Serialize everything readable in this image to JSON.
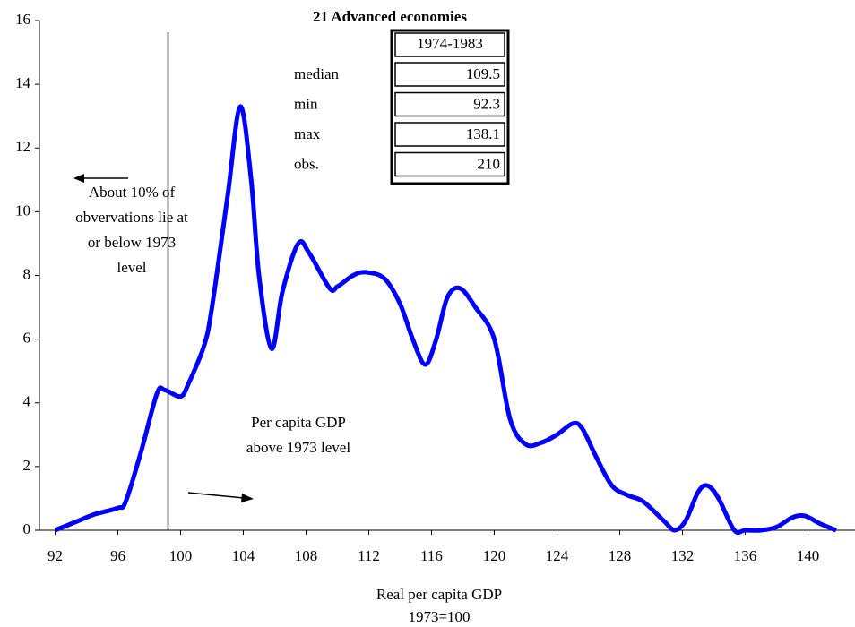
{
  "chart_data": {
    "type": "line",
    "title": "21 Advanced economies",
    "x_label": [
      "Real per capita GDP",
      "1973=100"
    ],
    "x": [
      92,
      93.5,
      94.5,
      96,
      96.5,
      97.5,
      98.5,
      99,
      100,
      100.5,
      101.5,
      102,
      103,
      103.8,
      104.5,
      105,
      105.8,
      106.5,
      107.5,
      108.2,
      109.5,
      110,
      111,
      111.8,
      113,
      114,
      114.8,
      115.6,
      116.3,
      117,
      117.8,
      118.8,
      120,
      121,
      122,
      123,
      124,
      125,
      125.6,
      126.5,
      127.5,
      128.5,
      129.5,
      130.8,
      131.5,
      132.2,
      133,
      133.6,
      134.3,
      135.3,
      136,
      137,
      138,
      139,
      139.8,
      140.8,
      141.8
    ],
    "series": [
      {
        "color": "#0000ff",
        "values": [
          0,
          0.3,
          0.5,
          0.7,
          0.9,
          2.5,
          4.3,
          4.4,
          4.2,
          4.6,
          5.8,
          7,
          10.5,
          13.3,
          11,
          8,
          5.7,
          7.5,
          9.0,
          8.7,
          7.6,
          7.65,
          8.0,
          8.1,
          7.9,
          7.1,
          6.0,
          5.2,
          6.0,
          7.3,
          7.6,
          7.0,
          6.0,
          3.5,
          2.7,
          2.75,
          3.0,
          3.35,
          3.2,
          2.3,
          1.4,
          1.1,
          0.9,
          0.3,
          0,
          0.3,
          1.2,
          1.4,
          1.0,
          0,
          0,
          0,
          0.1,
          0.4,
          0.45,
          0.2,
          0
        ]
      }
    ],
    "xlim": [
      91,
      143
    ],
    "ylim": [
      0,
      16
    ],
    "xticks": [
      92,
      96,
      100,
      104,
      108,
      112,
      116,
      120,
      124,
      128,
      132,
      136,
      140
    ],
    "yticks": [
      0,
      2,
      4,
      6,
      8,
      10,
      12,
      14,
      16
    ],
    "reference_line": 99.2,
    "annotations": [
      [
        "About 10% of",
        "obvervations lie at",
        "or below 1973",
        "level"
      ],
      [
        "Per capita GDP",
        "above 1973 level"
      ]
    ],
    "stats": {
      "header": "1974-1983",
      "rows": [
        [
          "median",
          109.5
        ],
        [
          "min",
          92.3
        ],
        [
          "max",
          138.1
        ],
        [
          "obs.",
          210
        ]
      ]
    }
  }
}
